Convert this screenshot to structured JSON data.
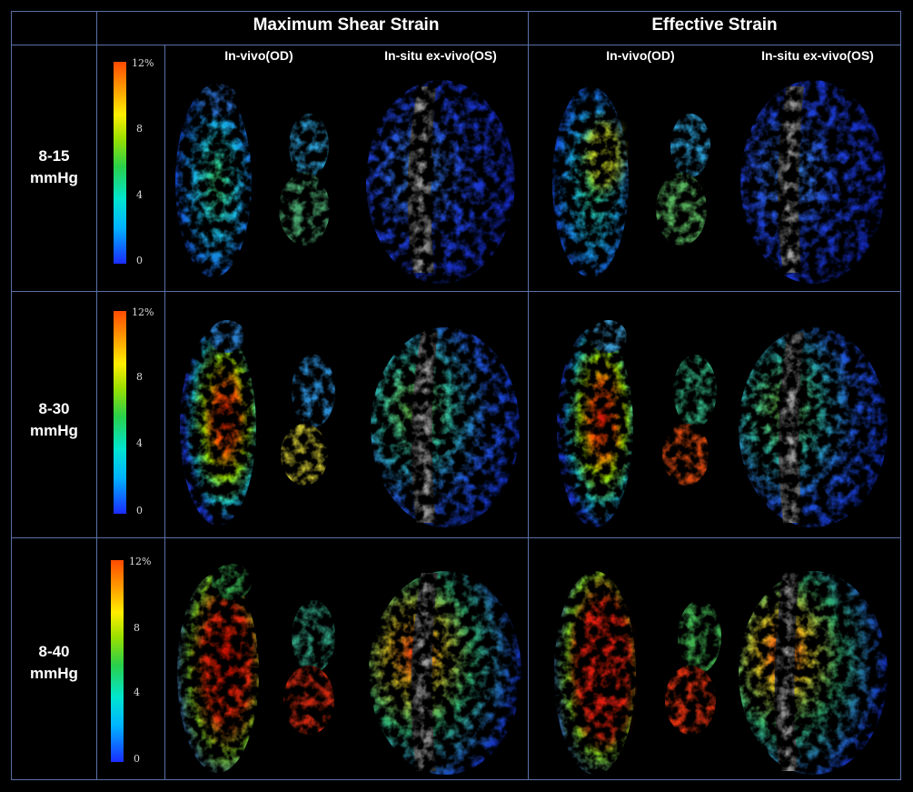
{
  "columns": {
    "maximum_shear": "Maximum Shear Strain",
    "effective": "Effective Strain"
  },
  "subheaders": {
    "in_vivo": "In-vivo(OD)",
    "ex_vivo": "In-situ ex-vivo(OS)"
  },
  "rows": [
    {
      "line1": "8-15",
      "line2": "mmHg"
    },
    {
      "line1": "8-30",
      "line2": "mmHg"
    },
    {
      "line1": "8-40",
      "line2": "mmHg"
    }
  ],
  "colorbar": {
    "ticks": [
      "12%",
      "8",
      "4",
      "0"
    ],
    "colors": [
      "#1a2cff",
      "#00b4ff",
      "#29d04a",
      "#ffee00",
      "#ff4a00"
    ]
  }
}
